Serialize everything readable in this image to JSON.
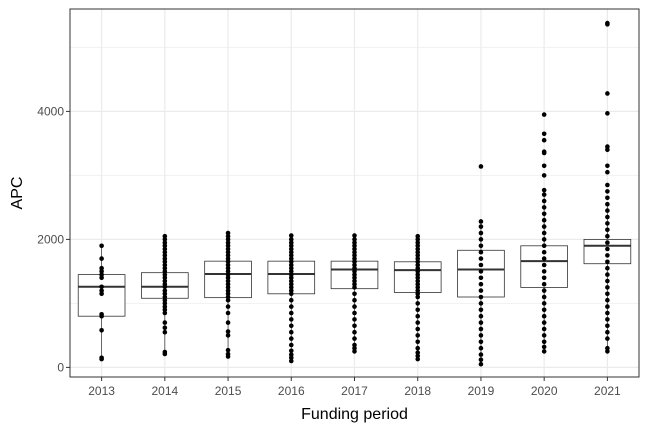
{
  "chart_data": {
    "type": "box",
    "xlabel": "Funding period",
    "ylabel": "APC",
    "ylim": [
      -150,
      5600
    ],
    "y_ticks": [
      0,
      2000,
      4000
    ],
    "grid": true,
    "legend": "none",
    "categories": [
      "2013",
      "2014",
      "2015",
      "2016",
      "2017",
      "2018",
      "2019",
      "2020",
      "2021"
    ],
    "boxes": [
      {
        "category": "2013",
        "q1": 800,
        "median": 1260,
        "q3": 1450,
        "whisker_low": 130,
        "whisker_high": 1900
      },
      {
        "category": "2014",
        "q1": 1080,
        "median": 1260,
        "q3": 1480,
        "whisker_low": 220,
        "whisker_high": 2050
      },
      {
        "category": "2015",
        "q1": 1090,
        "median": 1460,
        "q3": 1660,
        "whisker_low": 170,
        "whisker_high": 2100
      },
      {
        "category": "2016",
        "q1": 1150,
        "median": 1460,
        "q3": 1660,
        "whisker_low": 100,
        "whisker_high": 2060
      },
      {
        "category": "2017",
        "q1": 1230,
        "median": 1530,
        "q3": 1660,
        "whisker_low": 250,
        "whisker_high": 2060
      },
      {
        "category": "2018",
        "q1": 1170,
        "median": 1520,
        "q3": 1650,
        "whisker_low": 130,
        "whisker_high": 2050
      },
      {
        "category": "2019",
        "q1": 1100,
        "median": 1530,
        "q3": 1830,
        "whisker_low": 50,
        "whisker_high": 2280
      },
      {
        "category": "2020",
        "q1": 1250,
        "median": 1660,
        "q3": 1900,
        "whisker_low": 250,
        "whisker_high": 2770
      },
      {
        "category": "2021",
        "q1": 1620,
        "median": 1900,
        "q3": 2000,
        "whisker_low": 250,
        "whisker_high": 2550
      }
    ],
    "points": [
      {
        "category": "2013",
        "values": [
          130,
          150,
          580,
          800,
          830,
          1150,
          1200,
          1260,
          1400,
          1450,
          1500,
          1550,
          1700,
          1900
        ]
      },
      {
        "category": "2014",
        "values": [
          210,
          240,
          550,
          620,
          700,
          850,
          900,
          950,
          1000,
          1050,
          1100,
          1150,
          1200,
          1260,
          1300,
          1350,
          1400,
          1450,
          1500,
          1550,
          1600,
          1650,
          1700,
          1750,
          1800,
          1850,
          1900,
          1950,
          2000,
          2050
        ]
      },
      {
        "category": "2015",
        "values": [
          170,
          210,
          270,
          500,
          560,
          700,
          850,
          950,
          1050,
          1100,
          1150,
          1200,
          1250,
          1300,
          1350,
          1400,
          1450,
          1500,
          1550,
          1600,
          1650,
          1700,
          1750,
          1800,
          1850,
          1900,
          1950,
          2000,
          2050,
          2100
        ]
      },
      {
        "category": "2016",
        "values": [
          100,
          150,
          200,
          260,
          350,
          450,
          550,
          650,
          750,
          850,
          950,
          1050,
          1150,
          1200,
          1250,
          1300,
          1350,
          1400,
          1450,
          1500,
          1550,
          1600,
          1650,
          1700,
          1750,
          1800,
          1850,
          1900,
          1950,
          2000,
          2060
        ]
      },
      {
        "category": "2017",
        "values": [
          250,
          300,
          350,
          450,
          550,
          650,
          750,
          850,
          950,
          1050,
          1150,
          1250,
          1300,
          1350,
          1400,
          1450,
          1500,
          1550,
          1600,
          1650,
          1700,
          1750,
          1800,
          1850,
          1900,
          1950,
          2000,
          2060
        ]
      },
      {
        "category": "2018",
        "values": [
          130,
          180,
          230,
          300,
          400,
          500,
          600,
          700,
          800,
          900,
          1000,
          1100,
          1150,
          1200,
          1250,
          1300,
          1350,
          1400,
          1450,
          1500,
          1550,
          1600,
          1650,
          1700,
          1750,
          1800,
          1850,
          1900,
          1950,
          2000,
          2050
        ]
      },
      {
        "category": "2019",
        "values": [
          50,
          120,
          200,
          300,
          400,
          500,
          600,
          700,
          800,
          900,
          1000,
          1100,
          1200,
          1300,
          1400,
          1500,
          1600,
          1700,
          1800,
          1900,
          2000,
          2100,
          2200,
          2280,
          3140
        ]
      },
      {
        "category": "2020",
        "values": [
          250,
          320,
          400,
          500,
          600,
          700,
          800,
          900,
          1000,
          1100,
          1200,
          1300,
          1400,
          1500,
          1600,
          1700,
          1800,
          1900,
          2000,
          2100,
          2200,
          2300,
          2400,
          2500,
          2600,
          2700,
          2770,
          3000,
          3150,
          3350,
          3370,
          3550,
          3650,
          3950
        ]
      },
      {
        "category": "2021",
        "values": [
          250,
          300,
          450,
          550,
          650,
          750,
          850,
          950,
          1050,
          1150,
          1250,
          1350,
          1450,
          1550,
          1650,
          1750,
          1850,
          1950,
          2050,
          2150,
          2250,
          2350,
          2450,
          2550,
          2650,
          2750,
          2850,
          3050,
          3150,
          3400,
          3450,
          3970,
          4280,
          5360,
          5380
        ]
      }
    ]
  }
}
